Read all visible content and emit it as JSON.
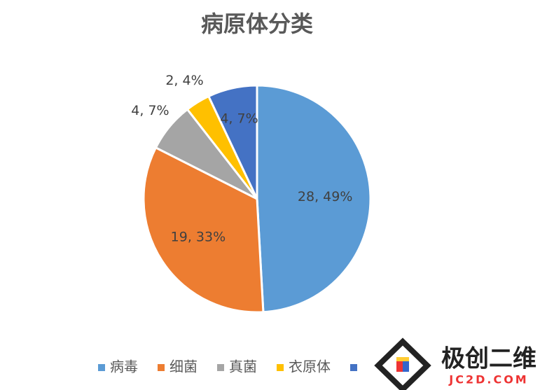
{
  "chart_data": {
    "type": "pie",
    "title": "病原体分类",
    "categories": [
      "病毒",
      "细菌",
      "真菌",
      "衣原体",
      null
    ],
    "values": [
      28,
      19,
      4,
      2,
      4
    ],
    "value_labels": [
      "28, 49%",
      "19, 33%",
      "4, 7%",
      "2, 4%",
      "4, 7%"
    ],
    "colors": [
      "#5b9bd5",
      "#ed7d31",
      "#a5a5a5",
      "#ffc000",
      "#4472c4"
    ],
    "legend": "bottom"
  },
  "watermark": {
    "name": "极创二维",
    "url": "JC2D.COM"
  }
}
